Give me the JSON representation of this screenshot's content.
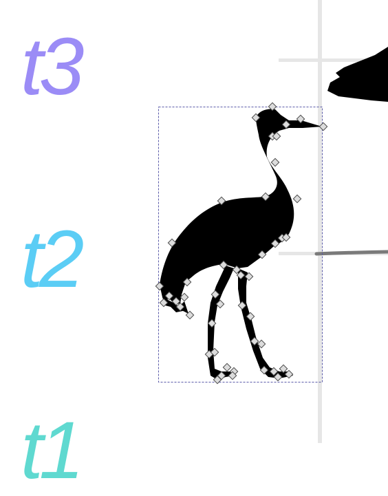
{
  "canvas": {
    "background": "#ffffff"
  },
  "tracks": [
    {
      "id": "t3",
      "label": "t3",
      "color": "#9b8cf6"
    },
    {
      "id": "t2",
      "label": "t2",
      "color": "#5bcdf5"
    },
    {
      "id": "t1",
      "label": "t1",
      "color": "#5fd9d0"
    }
  ],
  "colors": {
    "guide": "#e6e6e6",
    "shape_fill": "#000000",
    "selection_box": "#5a5aa8",
    "handle_fill": "#dcdcdc",
    "handle_stroke": "#4a4a4a",
    "stroke_line": "#7a7a7a"
  },
  "selection": {
    "object": "crane-silhouette",
    "handle_icon": "diamond-node-handle-icon"
  }
}
